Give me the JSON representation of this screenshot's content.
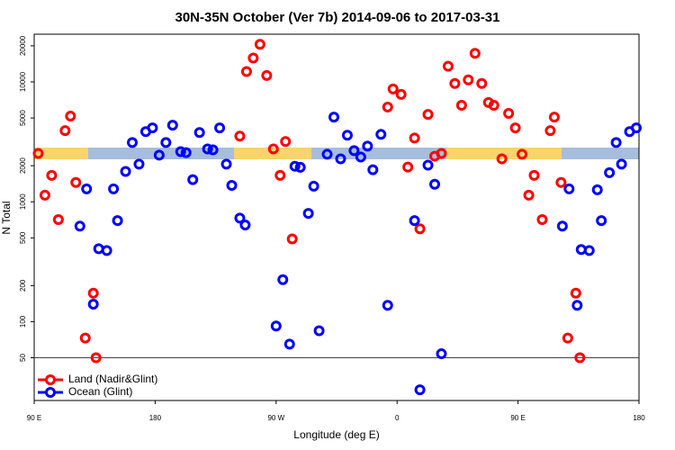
{
  "chart_data": {
    "type": "scatter",
    "title": "30N-35N October (Ver 7b)   2014-09-06 to 2017-03-31",
    "x_label": "Longitude (deg E)",
    "y_label": "N Total",
    "xlim": [
      90,
      540
    ],
    "xticks": [
      {
        "value": 90,
        "label": "90 E"
      },
      180,
      {
        "value": 270,
        "label": "90 W"
      },
      {
        "value": 360,
        "label": "0"
      },
      {
        "value": 450,
        "label": "90 E"
      },
      {
        "value": 540,
        "label": "180"
      }
    ],
    "ylim": [
      22,
      25000
    ],
    "log_y": true,
    "yticks": [
      50,
      100,
      200,
      500,
      1000,
      2000,
      5000,
      10000,
      20000
    ],
    "hline": 50,
    "legend": "bottom-left",
    "series": [
      {
        "name": "Land (Nadir&Glint)",
        "color": "#ff0000",
        "x": [
          93,
          98,
          103,
          108,
          113,
          117,
          121,
          128,
          134,
          136,
          243,
          248,
          253,
          258,
          263,
          268,
          273,
          277,
          282,
          353,
          357,
          363,
          368,
          373,
          377,
          383,
          388,
          393,
          398,
          403,
          408,
          413,
          418,
          423,
          428,
          432,
          438,
          443,
          448,
          453,
          458,
          462,
          468,
          474,
          477,
          482,
          487,
          493,
          496
        ],
        "values": [
          2530,
          1135,
          1660,
          710,
          3920,
          5180,
          1450,
          73,
          173,
          50,
          3530,
          12200,
          15800,
          20600,
          11300,
          2760,
          1660,
          3180,
          490,
          6170,
          8730,
          7870,
          1950,
          3400,
          595,
          5360,
          2400,
          2530,
          13500,
          9700,
          6380,
          10400,
          17300,
          9700,
          6730,
          6380,
          2280,
          5460,
          4130,
          2490,
          1135,
          1660,
          710,
          3920,
          5090,
          1450,
          73,
          173,
          50
        ]
      },
      {
        "name": "Ocean (Glint)",
        "color": "#0000ff",
        "x": [
          124,
          129,
          134,
          138,
          144,
          149,
          152,
          158,
          163,
          168,
          173,
          178,
          183,
          188,
          193,
          199,
          203,
          208,
          213,
          219,
          223,
          228,
          233,
          237,
          243,
          247,
          270,
          275,
          280,
          284,
          288,
          294,
          298,
          302,
          308,
          313,
          318,
          323,
          328,
          333,
          338,
          342,
          348,
          353,
          373,
          377,
          383,
          388,
          393,
          483,
          488,
          494,
          497,
          503,
          509,
          512,
          518,
          523,
          527,
          533,
          538
        ],
        "values": [
          627,
          1280,
          140,
          406,
          392,
          1280,
          697,
          1790,
          3120,
          2060,
          3850,
          4130,
          2450,
          3120,
          4350,
          2620,
          2570,
          1530,
          3780,
          2760,
          2710,
          4130,
          2060,
          1370,
          730,
          640,
          92,
          224,
          65,
          1980,
          1940,
          800,
          1350,
          84,
          2490,
          5090,
          2280,
          3590,
          2670,
          2360,
          2910,
          1850,
          3650,
          137,
          697,
          27,
          2020,
          1400,
          54,
          627,
          1280,
          137,
          400,
          392,
          1260,
          697,
          1750,
          3120,
          2060,
          3850,
          4130
        ]
      }
    ]
  }
}
